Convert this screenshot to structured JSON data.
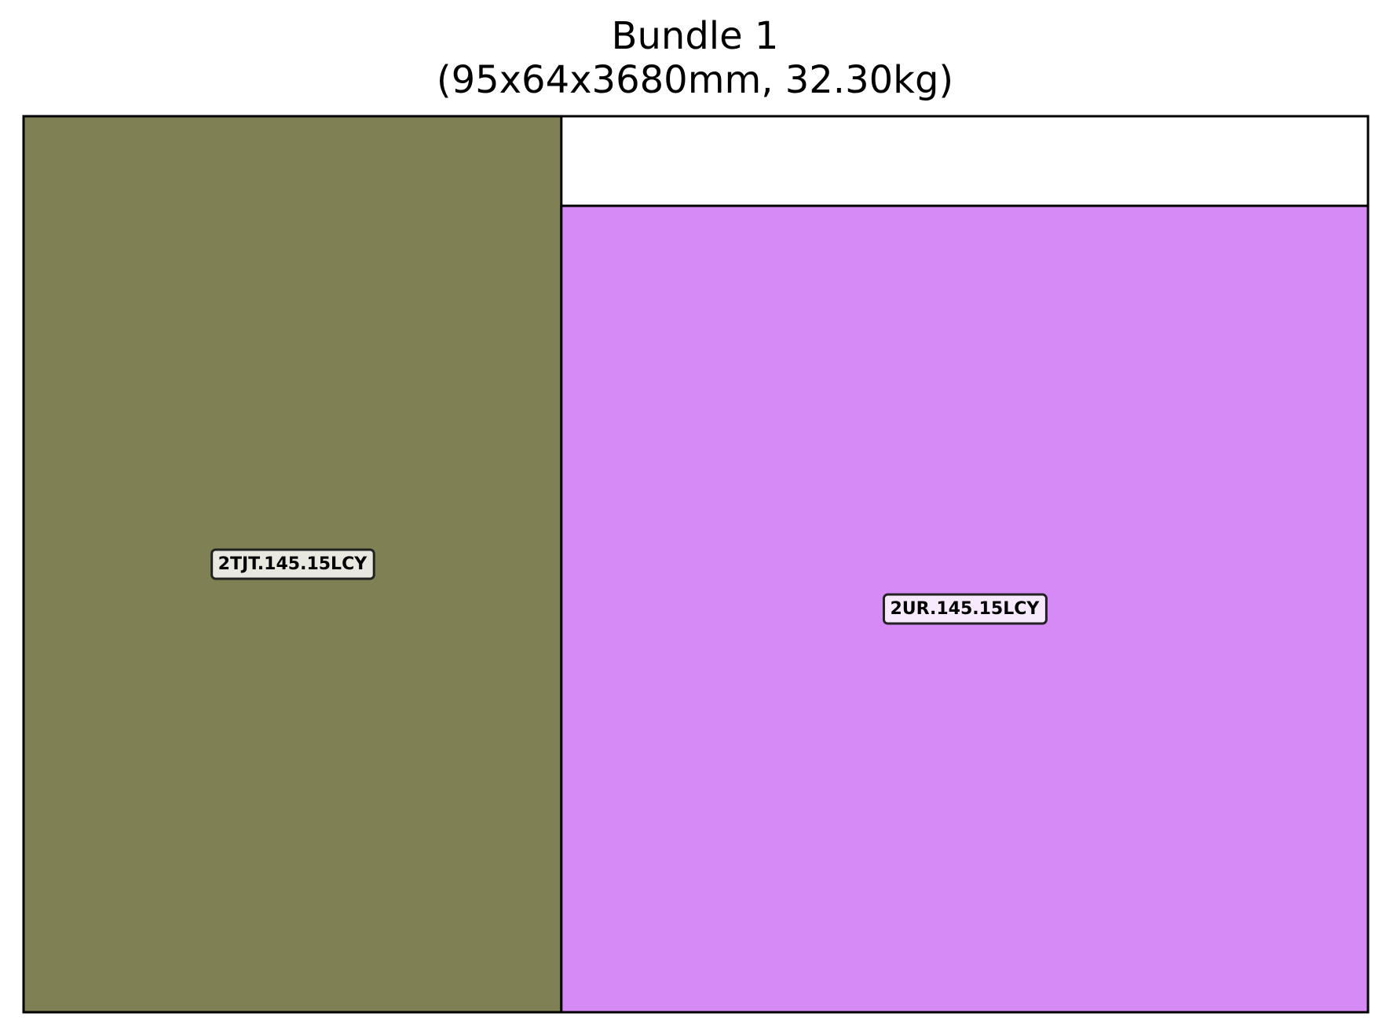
{
  "title": {
    "line1": "Bundle 1",
    "line2": "(95x64x3680mm, 32.30kg)"
  },
  "bundle": {
    "width_mm": 95,
    "height_mm": 64,
    "length_mm": 3680,
    "weight_kg": 32.3
  },
  "pieces": [
    {
      "id": "piece-2tjt",
      "label": "2TJT.145.15LCY",
      "color": "#7f8053",
      "x_mm": 0,
      "y_mm": 0,
      "w_mm": 38,
      "h_mm": 64
    },
    {
      "id": "piece-2ur",
      "label": "2UR.145.15LCY",
      "color": "#d68af5",
      "x_mm": 38,
      "y_mm": 0,
      "w_mm": 57,
      "h_mm": 57.6
    }
  ],
  "colors": {
    "outline": "#000000",
    "label_box_fill": "#ffffff",
    "label_box_stroke": "#222222"
  }
}
